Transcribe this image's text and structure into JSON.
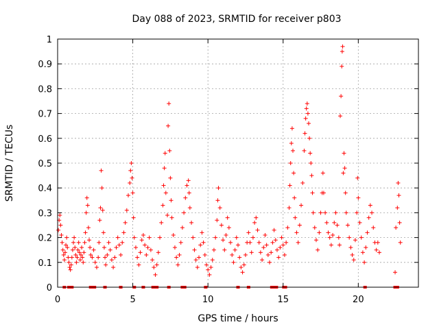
{
  "chart_data": {
    "type": "scatter",
    "title": "Day 088 of 2023, SRMTID for receiver p803",
    "xlabel": "GPS time / hours",
    "ylabel": "SRMTID / TECUs",
    "xlim": [
      0,
      24
    ],
    "ylim": [
      0,
      1
    ],
    "xticks": [
      0,
      5,
      10,
      15,
      20
    ],
    "xtick_labels": [
      "0",
      "5",
      "10",
      "15",
      "20"
    ],
    "yticks": [
      0,
      0.1,
      0.2,
      0.3,
      0.4,
      0.5,
      0.6,
      0.7,
      0.8,
      0.9,
      1
    ],
    "ytick_labels": [
      "0",
      "0.1",
      "0.2",
      "0.3",
      "0.4",
      "0.5",
      "0.6",
      "0.7",
      "0.8",
      "0.9",
      "1"
    ],
    "grid": true,
    "marker": "+",
    "series": [
      {
        "name": "SRMTID",
        "color": "#ff0000",
        "points": [
          [
            0.05,
            0.23
          ],
          [
            0.1,
            0.27
          ],
          [
            0.15,
            0.29
          ],
          [
            0.2,
            0.25
          ],
          [
            0.25,
            0.21
          ],
          [
            0.3,
            0.18
          ],
          [
            0.35,
            0.15
          ],
          [
            0.4,
            0.13
          ],
          [
            0.45,
            0.11
          ],
          [
            0.5,
            0.14
          ],
          [
            0.55,
            0.17
          ],
          [
            0.6,
            0.2
          ],
          [
            0.65,
            0.16
          ],
          [
            0.7,
            0.12
          ],
          [
            0.75,
            0.1
          ],
          [
            0.8,
            0.08
          ],
          [
            0.85,
            0.07
          ],
          [
            0.9,
            0.09
          ],
          [
            0.95,
            0.12
          ],
          [
            1.0,
            0.15
          ],
          [
            1.05,
            0.18
          ],
          [
            1.1,
            0.2
          ],
          [
            1.15,
            0.16
          ],
          [
            1.2,
            0.13
          ],
          [
            1.25,
            0.1
          ],
          [
            1.3,
            0.12
          ],
          [
            1.35,
            0.15
          ],
          [
            1.4,
            0.18
          ],
          [
            1.45,
            0.14
          ],
          [
            1.5,
            0.11
          ],
          [
            1.55,
            0.13
          ],
          [
            1.6,
            0.16
          ],
          [
            1.65,
            0.12
          ],
          [
            1.7,
            0.1
          ],
          [
            1.75,
            0.14
          ],
          [
            1.8,
            0.18
          ],
          [
            1.85,
            0.22
          ],
          [
            1.9,
            0.3
          ],
          [
            1.95,
            0.36
          ],
          [
            2.0,
            0.33
          ],
          [
            2.05,
            0.24
          ],
          [
            2.1,
            0.19
          ],
          [
            2.15,
            0.16
          ],
          [
            2.2,
            0.13
          ],
          [
            2.3,
            0.12
          ],
          [
            2.4,
            0.15
          ],
          [
            2.5,
            0.1
          ],
          [
            2.6,
            0.08
          ],
          [
            2.7,
            0.12
          ],
          [
            2.75,
            0.18
          ],
          [
            2.8,
            0.27
          ],
          [
            2.85,
            0.32
          ],
          [
            2.9,
            0.47
          ],
          [
            2.95,
            0.4
          ],
          [
            3.0,
            0.31
          ],
          [
            3.05,
            0.22
          ],
          [
            3.1,
            0.16
          ],
          [
            3.15,
            0.12
          ],
          [
            3.2,
            0.09
          ],
          [
            3.3,
            0.13
          ],
          [
            3.4,
            0.18
          ],
          [
            3.5,
            0.15
          ],
          [
            3.6,
            0.11
          ],
          [
            3.7,
            0.08
          ],
          [
            3.8,
            0.12
          ],
          [
            3.9,
            0.16
          ],
          [
            4.0,
            0.2
          ],
          [
            4.1,
            0.17
          ],
          [
            4.2,
            0.13
          ],
          [
            4.3,
            0.18
          ],
          [
            4.4,
            0.22
          ],
          [
            4.5,
            0.26
          ],
          [
            4.6,
            0.31
          ],
          [
            4.7,
            0.37
          ],
          [
            4.8,
            0.42
          ],
          [
            4.85,
            0.47
          ],
          [
            4.9,
            0.5
          ],
          [
            4.95,
            0.44
          ],
          [
            5.0,
            0.38
          ],
          [
            5.05,
            0.28
          ],
          [
            5.1,
            0.2
          ],
          [
            5.2,
            0.16
          ],
          [
            5.3,
            0.12
          ],
          [
            5.4,
            0.09
          ],
          [
            5.5,
            0.14
          ],
          [
            5.6,
            0.19
          ],
          [
            5.7,
            0.21
          ],
          [
            5.8,
            0.17
          ],
          [
            5.9,
            0.13
          ],
          [
            6.0,
            0.16
          ],
          [
            6.1,
            0.2
          ],
          [
            6.2,
            0.15
          ],
          [
            6.3,
            0.11
          ],
          [
            6.4,
            0.08
          ],
          [
            6.5,
            0.05
          ],
          [
            6.6,
            0.09
          ],
          [
            6.7,
            0.14
          ],
          [
            6.8,
            0.2
          ],
          [
            6.9,
            0.26
          ],
          [
            7.0,
            0.33
          ],
          [
            7.05,
            0.41
          ],
          [
            7.1,
            0.48
          ],
          [
            7.15,
            0.54
          ],
          [
            7.2,
            0.38
          ],
          [
            7.3,
            0.29
          ],
          [
            7.35,
            0.65
          ],
          [
            7.4,
            0.74
          ],
          [
            7.45,
            0.55
          ],
          [
            7.5,
            0.44
          ],
          [
            7.55,
            0.35
          ],
          [
            7.6,
            0.28
          ],
          [
            7.7,
            0.21
          ],
          [
            7.8,
            0.16
          ],
          [
            7.9,
            0.12
          ],
          [
            8.0,
            0.09
          ],
          [
            8.1,
            0.13
          ],
          [
            8.2,
            0.18
          ],
          [
            8.3,
            0.24
          ],
          [
            8.4,
            0.3
          ],
          [
            8.5,
            0.36
          ],
          [
            8.6,
            0.41
          ],
          [
            8.7,
            0.43
          ],
          [
            8.75,
            0.38
          ],
          [
            8.8,
            0.32
          ],
          [
            8.9,
            0.26
          ],
          [
            9.0,
            0.2
          ],
          [
            9.1,
            0.15
          ],
          [
            9.2,
            0.11
          ],
          [
            9.3,
            0.08
          ],
          [
            9.4,
            0.12
          ],
          [
            9.5,
            0.17
          ],
          [
            9.6,
            0.22
          ],
          [
            9.7,
            0.18
          ],
          [
            9.8,
            0.13
          ],
          [
            9.9,
            0.09
          ],
          [
            10.0,
            0.07
          ],
          [
            10.1,
            0.05
          ],
          [
            10.2,
            0.08
          ],
          [
            10.3,
            0.11
          ],
          [
            10.4,
            0.15
          ],
          [
            10.5,
            0.2
          ],
          [
            10.6,
            0.27
          ],
          [
            10.65,
            0.35
          ],
          [
            10.7,
            0.4
          ],
          [
            10.8,
            0.32
          ],
          [
            10.9,
            0.25
          ],
          [
            11.0,
            0.19
          ],
          [
            11.1,
            0.15
          ],
          [
            11.2,
            0.21
          ],
          [
            11.3,
            0.28
          ],
          [
            11.4,
            0.24
          ],
          [
            11.5,
            0.18
          ],
          [
            11.6,
            0.13
          ],
          [
            11.7,
            0.1
          ],
          [
            11.8,
            0.15
          ],
          [
            11.9,
            0.2
          ],
          [
            12.0,
            0.17
          ],
          [
            12.1,
            0.12
          ],
          [
            12.2,
            0.08
          ],
          [
            12.3,
            0.06
          ],
          [
            12.4,
            0.09
          ],
          [
            12.5,
            0.13
          ],
          [
            12.6,
            0.18
          ],
          [
            12.7,
            0.22
          ],
          [
            12.8,
            0.18
          ],
          [
            12.9,
            0.14
          ],
          [
            13.0,
            0.2
          ],
          [
            13.1,
            0.26
          ],
          [
            13.2,
            0.28
          ],
          [
            13.3,
            0.23
          ],
          [
            13.4,
            0.18
          ],
          [
            13.5,
            0.14
          ],
          [
            13.6,
            0.11
          ],
          [
            13.7,
            0.16
          ],
          [
            13.8,
            0.21
          ],
          [
            13.9,
            0.17
          ],
          [
            14.0,
            0.13
          ],
          [
            14.1,
            0.1
          ],
          [
            14.2,
            0.14
          ],
          [
            14.3,
            0.18
          ],
          [
            14.4,
            0.23
          ],
          [
            14.5,
            0.19
          ],
          [
            14.6,
            0.15
          ],
          [
            14.7,
            0.12
          ],
          [
            14.8,
            0.16
          ],
          [
            14.9,
            0.2
          ],
          [
            15.0,
            0.17
          ],
          [
            15.1,
            0.13
          ],
          [
            15.2,
            0.18
          ],
          [
            15.3,
            0.24
          ],
          [
            15.4,
            0.32
          ],
          [
            15.45,
            0.41
          ],
          [
            15.5,
            0.5
          ],
          [
            15.55,
            0.58
          ],
          [
            15.6,
            0.64
          ],
          [
            15.65,
            0.55
          ],
          [
            15.7,
            0.46
          ],
          [
            15.75,
            0.36
          ],
          [
            15.8,
            0.28
          ],
          [
            15.9,
            0.22
          ],
          [
            16.0,
            0.18
          ],
          [
            16.1,
            0.25
          ],
          [
            16.2,
            0.33
          ],
          [
            16.3,
            0.42
          ],
          [
            16.4,
            0.55
          ],
          [
            16.45,
            0.62
          ],
          [
            16.5,
            0.68
          ],
          [
            16.55,
            0.72
          ],
          [
            16.6,
            0.74
          ],
          [
            16.65,
            0.7
          ],
          [
            16.7,
            0.66
          ],
          [
            16.75,
            0.6
          ],
          [
            16.8,
            0.54
          ],
          [
            16.85,
            0.5
          ],
          [
            16.9,
            0.45
          ],
          [
            16.95,
            0.38
          ],
          [
            17.0,
            0.3
          ],
          [
            17.1,
            0.24
          ],
          [
            17.2,
            0.19
          ],
          [
            17.3,
            0.15
          ],
          [
            17.4,
            0.22
          ],
          [
            17.5,
            0.3
          ],
          [
            17.6,
            0.38
          ],
          [
            17.65,
            0.46
          ],
          [
            17.7,
            0.38
          ],
          [
            17.8,
            0.3
          ],
          [
            17.9,
            0.26
          ],
          [
            18.0,
            0.22
          ],
          [
            18.1,
            0.2
          ],
          [
            18.2,
            0.17
          ],
          [
            18.3,
            0.21
          ],
          [
            18.4,
            0.26
          ],
          [
            18.5,
            0.3
          ],
          [
            18.6,
            0.25
          ],
          [
            18.7,
            0.2
          ],
          [
            18.75,
            0.17
          ],
          [
            18.8,
            0.69
          ],
          [
            18.85,
            0.77
          ],
          [
            18.9,
            0.89
          ],
          [
            18.93,
            0.95
          ],
          [
            18.96,
            0.97
          ],
          [
            19.0,
            0.46
          ],
          [
            19.05,
            0.54
          ],
          [
            19.1,
            0.48
          ],
          [
            19.15,
            0.38
          ],
          [
            19.2,
            0.3
          ],
          [
            19.3,
            0.25
          ],
          [
            19.4,
            0.2
          ],
          [
            19.5,
            0.16
          ],
          [
            19.6,
            0.13
          ],
          [
            19.7,
            0.11
          ],
          [
            19.8,
            0.19
          ],
          [
            19.9,
            0.3
          ],
          [
            19.95,
            0.44
          ],
          [
            20.0,
            0.36
          ],
          [
            20.1,
            0.26
          ],
          [
            20.2,
            0.2
          ],
          [
            20.3,
            0.14
          ],
          [
            20.4,
            0.1
          ],
          [
            20.5,
            0.16
          ],
          [
            20.6,
            0.22
          ],
          [
            20.7,
            0.28
          ],
          [
            20.8,
            0.33
          ],
          [
            20.9,
            0.3
          ],
          [
            21.0,
            0.24
          ],
          [
            21.1,
            0.18
          ],
          [
            21.2,
            0.15
          ],
          [
            21.3,
            0.18
          ],
          [
            21.4,
            0.14
          ],
          [
            22.45,
            0.06
          ],
          [
            22.5,
            0.24
          ],
          [
            22.6,
            0.32
          ],
          [
            22.65,
            0.42
          ],
          [
            22.7,
            0.37
          ],
          [
            22.75,
            0.26
          ],
          [
            22.8,
            0.18
          ]
        ]
      }
    ],
    "baseline_marks": [
      0.45,
      0.75,
      0.95,
      2.2,
      2.35,
      2.45,
      3.15,
      4.2,
      5.1,
      5.7,
      6.35,
      6.45,
      6.6,
      7.4,
      8.3,
      8.45,
      9.85,
      12.0,
      12.7,
      14.25,
      14.35,
      14.55,
      15.05,
      15.15,
      20.45,
      22.45,
      22.5,
      22.6
    ]
  }
}
